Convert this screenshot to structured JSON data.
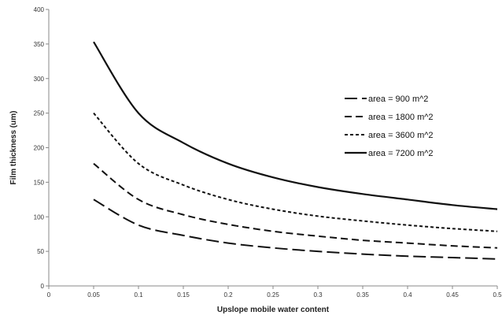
{
  "chart_data": {
    "type": "line",
    "title": "",
    "xlabel": "Upslope mobile water content",
    "ylabel": "Film thickness (um)",
    "xlim": [
      0,
      0.5
    ],
    "ylim": [
      0,
      400
    ],
    "x_ticks": [
      0,
      0.05,
      0.1,
      0.15,
      0.2,
      0.25,
      0.3,
      0.35,
      0.4,
      0.45,
      0.5
    ],
    "x_tick_labels": [
      "0",
      "0.05",
      "0.1",
      "0.15",
      "0.2",
      "0.25",
      "0.3",
      "0.35",
      "0.4",
      "0.45",
      "0.5"
    ],
    "y_ticks": [
      0,
      50,
      100,
      150,
      200,
      250,
      300,
      350,
      400
    ],
    "y_tick_labels": [
      "0",
      "50",
      "100",
      "150",
      "200",
      "250",
      "300",
      "350",
      "400"
    ],
    "grid": false,
    "legend_position": "right",
    "x": [
      0.05,
      0.1,
      0.15,
      0.2,
      0.25,
      0.3,
      0.35,
      0.4,
      0.45,
      0.5
    ],
    "series": [
      {
        "name": "area = 900 m^2",
        "dash": "long-dash",
        "values": [
          125,
          88,
          73,
          62,
          55,
          50,
          46,
          43,
          41,
          39
        ]
      },
      {
        "name": "area = 1800 m^2",
        "dash": "dash",
        "values": [
          177,
          125,
          103,
          89,
          79,
          72,
          66,
          62,
          58,
          55
        ]
      },
      {
        "name": "area = 3600 m^2",
        "dash": "short-dash",
        "values": [
          250,
          177,
          146,
          125,
          111,
          101,
          94,
          88,
          83,
          79
        ]
      },
      {
        "name": "area = 7200 m^2",
        "dash": "solid",
        "values": [
          353,
          250,
          207,
          177,
          157,
          143,
          133,
          125,
          117,
          111
        ]
      }
    ],
    "colors": {
      "line": "#111111",
      "axis": "#888888"
    }
  }
}
